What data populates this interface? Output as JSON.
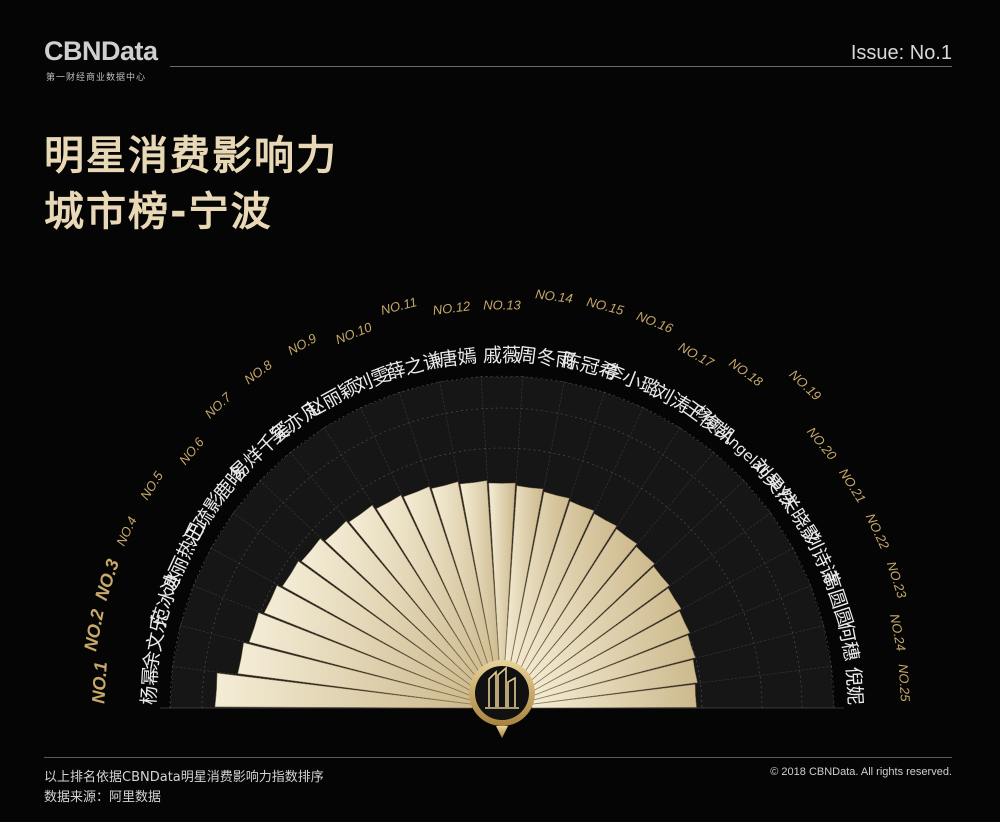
{
  "header": {
    "brand": "CBNData",
    "brand_sub": "第一财经商业数据中心",
    "issue": "Issue: No.1"
  },
  "title_line1": "明星消费影响力",
  "title_line2": "城市榜-宁波",
  "footer": {
    "note": "以上排名依据CBNData明星消费影响力指数排序",
    "source": "数据来源：阿里数据",
    "copyright": "© 2018 CBNData. All rights reserved."
  },
  "colors": {
    "background": "#050505",
    "bar_light": "#f2ead2",
    "bar_dark": "#c9b58a",
    "sector_bg": "#161616",
    "rank_gold": "#c8a96a",
    "title_gold": "#e8d8b6"
  },
  "chart_data": {
    "type": "bar",
    "subtype": "radial-semicircle",
    "categories": [
      "杨幂",
      "余文乐",
      "范冰冰",
      "迪丽热巴",
      "江疏影",
      "鹿晗",
      "易烊千玺",
      "吴亦凡",
      "赵丽颖",
      "刘雯",
      "薛之谦",
      "唐嫣",
      "戚薇",
      "周冬雨",
      "陈冠希",
      "李小璐",
      "刘涛",
      "王俊凯",
      "杨颖/Angelababy",
      "刘昊然",
      "关晓影",
      "刘诗诗",
      "高圆圆",
      "何穗",
      "倪妮"
    ],
    "ranks": [
      "NO.1",
      "NO.2",
      "NO.3",
      "NO.4",
      "NO.5",
      "NO.6",
      "NO.7",
      "NO.8",
      "NO.9",
      "NO.10",
      "NO.11",
      "NO.12",
      "NO.13",
      "NO.14",
      "NO.15",
      "NO.16",
      "NO.17",
      "NO.18",
      "NO.19",
      "NO.20",
      "NO.21",
      "NO.22",
      "NO.23",
      "NO.24",
      "NO.25"
    ],
    "values": [
      1.0,
      0.92,
      0.9,
      0.88,
      0.86,
      0.85,
      0.83,
      0.82,
      0.8,
      0.79,
      0.78,
      0.77,
      0.76,
      0.75,
      0.74,
      0.73,
      0.72,
      0.71,
      0.7,
      0.69,
      0.68,
      0.67,
      0.66,
      0.65,
      0.64
    ],
    "ylim": [
      0,
      1.0
    ]
  }
}
